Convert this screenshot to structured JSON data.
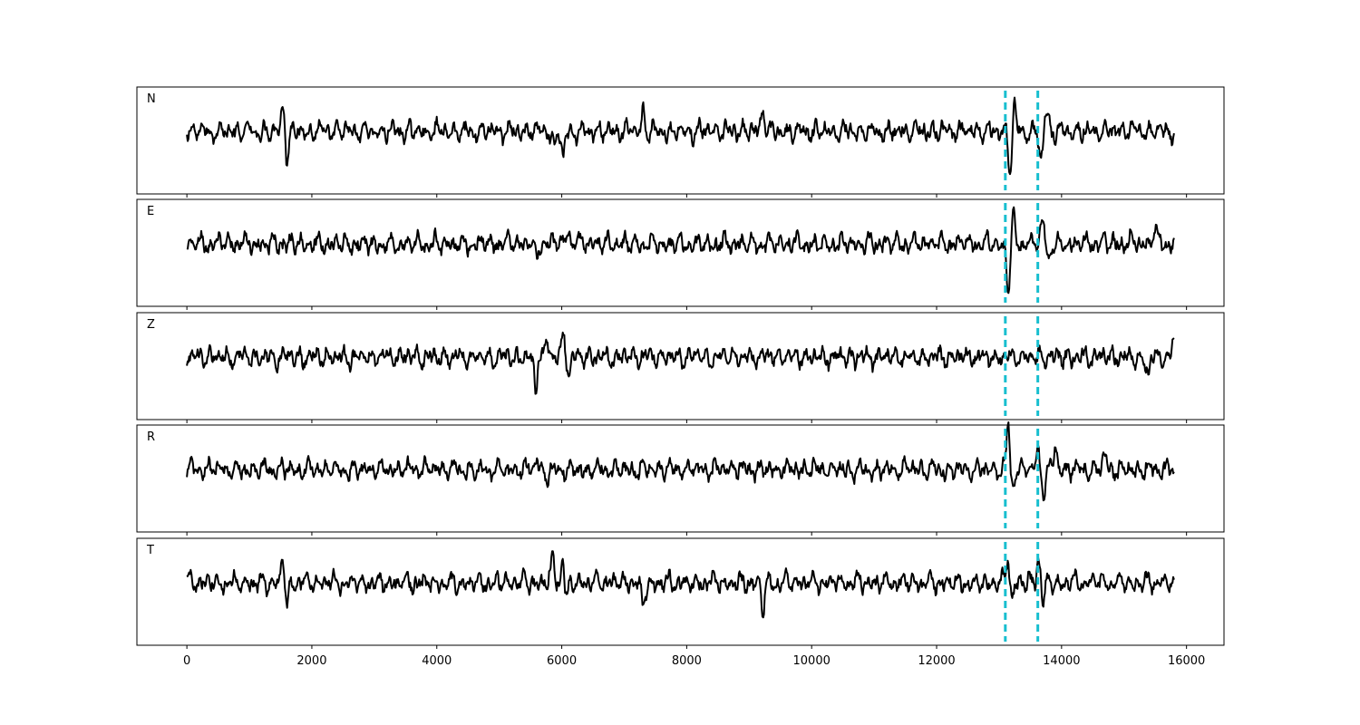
{
  "chart_data": {
    "type": "line",
    "title": "",
    "xlabel": "",
    "ylabel": "",
    "xlim": [
      -800,
      16600
    ],
    "x_ticks": [
      0,
      2000,
      4000,
      6000,
      8000,
      10000,
      12000,
      14000,
      16000
    ],
    "x_tick_labels": [
      "0",
      "2000",
      "4000",
      "6000",
      "8000",
      "10000",
      "12000",
      "14000",
      "16000"
    ],
    "grid": false,
    "legend": "none",
    "samples": 15800,
    "trace_color": "#000000",
    "pick_color": "#17becf",
    "picks": [
      13100,
      13620
    ],
    "panels": [
      {
        "label": "N",
        "events": [
          {
            "x": 1540,
            "amp": 0.6
          },
          {
            "x": 1600,
            "amp": -0.55
          },
          {
            "x": 5880,
            "amp": -0.4
          },
          {
            "x": 6020,
            "amp": -0.5
          },
          {
            "x": 7300,
            "amp": 0.4
          },
          {
            "x": 9220,
            "amp": 0.45
          },
          {
            "x": 13180,
            "amp": -0.9
          },
          {
            "x": 13240,
            "amp": 0.55
          },
          {
            "x": 13670,
            "amp": -0.6
          },
          {
            "x": 13760,
            "amp": 0.45
          }
        ]
      },
      {
        "label": "E",
        "events": [
          {
            "x": 5600,
            "amp": -0.3
          },
          {
            "x": 6100,
            "amp": 0.3
          },
          {
            "x": 13150,
            "amp": -0.95
          },
          {
            "x": 13230,
            "amp": 0.5
          },
          {
            "x": 13700,
            "amp": 0.45
          },
          {
            "x": 13800,
            "amp": -0.3
          },
          {
            "x": 15500,
            "amp": 0.35
          }
        ]
      },
      {
        "label": "Z",
        "events": [
          {
            "x": 5590,
            "amp": -0.95
          },
          {
            "x": 5620,
            "amp": 0.4
          },
          {
            "x": 5760,
            "amp": 0.35
          },
          {
            "x": 6030,
            "amp": 0.5
          },
          {
            "x": 6120,
            "amp": -0.35
          },
          {
            "x": 15380,
            "amp": -0.4
          },
          {
            "x": 15800,
            "amp": 0.35
          }
        ]
      },
      {
        "label": "R",
        "events": [
          {
            "x": 5600,
            "amp": 0.3
          },
          {
            "x": 5750,
            "amp": -0.25
          },
          {
            "x": 13150,
            "amp": 0.98
          },
          {
            "x": 13200,
            "amp": -0.5
          },
          {
            "x": 13620,
            "amp": 0.4
          },
          {
            "x": 13720,
            "amp": -0.45
          },
          {
            "x": 13900,
            "amp": 0.45
          },
          {
            "x": 14700,
            "amp": 0.3
          }
        ]
      },
      {
        "label": "T",
        "events": [
          {
            "x": 1540,
            "amp": 0.55
          },
          {
            "x": 1600,
            "amp": -0.55
          },
          {
            "x": 5860,
            "amp": 0.5
          },
          {
            "x": 6020,
            "amp": 0.55
          },
          {
            "x": 6070,
            "amp": -0.45
          },
          {
            "x": 7300,
            "amp": -0.5
          },
          {
            "x": 9220,
            "amp": -0.55
          },
          {
            "x": 13150,
            "amp": 0.65
          },
          {
            "x": 13190,
            "amp": -0.45
          },
          {
            "x": 13640,
            "amp": 0.55
          },
          {
            "x": 13700,
            "amp": -0.4
          }
        ]
      }
    ]
  }
}
